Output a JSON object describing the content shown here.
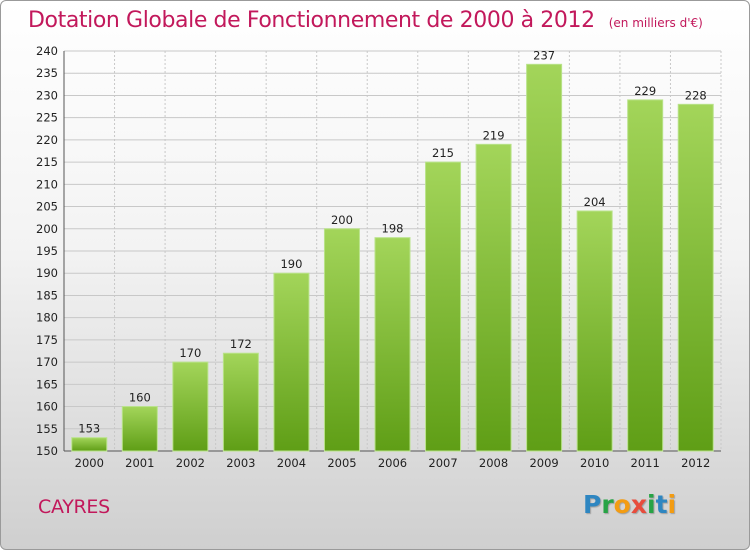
{
  "header": {
    "title": "Dotation Globale de Fonctionnement de 2000 à 2012",
    "subtitle": "(en milliers d'€)"
  },
  "footer": {
    "commune": "CAYRES",
    "logo_letters": [
      {
        "ch": "P",
        "color": "#2e86c1"
      },
      {
        "ch": "r",
        "color": "#27a345"
      },
      {
        "ch": "o",
        "color": "#f39c12"
      },
      {
        "ch": "x",
        "color": "#e74c3c"
      },
      {
        "ch": "i",
        "color": "#27a345"
      },
      {
        "ch": "t",
        "color": "#2e86c1"
      },
      {
        "ch": "i",
        "color": "#f39c12"
      }
    ]
  },
  "colors": {
    "bar_light": "#a3d55a",
    "bar_dark": "#5f9e16",
    "grid": "#c8c8c8",
    "title": "#c2185b"
  },
  "chart_data": {
    "type": "bar",
    "categories": [
      "2000",
      "2001",
      "2002",
      "2003",
      "2004",
      "2005",
      "2006",
      "2007",
      "2008",
      "2009",
      "2010",
      "2011",
      "2012"
    ],
    "values": [
      153,
      160,
      170,
      172,
      190,
      200,
      198,
      215,
      219,
      237,
      204,
      229,
      228
    ],
    "title": "Dotation Globale de Fonctionnement de 2000 à 2012",
    "subtitle": "(en milliers d'€)",
    "ylim": [
      150,
      240
    ],
    "yticks": [
      150,
      155,
      160,
      165,
      170,
      175,
      180,
      185,
      190,
      195,
      200,
      205,
      210,
      215,
      220,
      225,
      230,
      235,
      240
    ],
    "grid": true,
    "legend": "none"
  }
}
